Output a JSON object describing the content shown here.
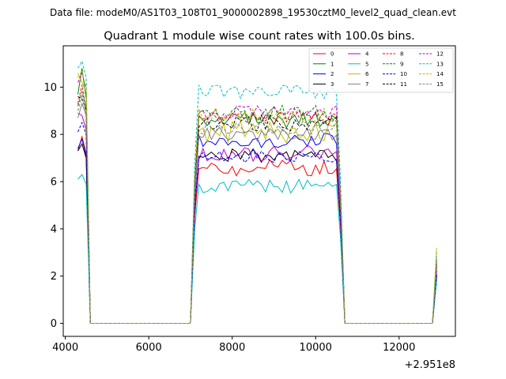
{
  "page": {
    "suptitle": "Data file: modeM0/AS1T03_108T01_9000002898_19530cztM0_level2_quad_clean.evt"
  },
  "chart_data": {
    "type": "line",
    "title": "Quadrant 1 module wise count rates with 100.0s bins.",
    "xlabel": "",
    "ylabel": "",
    "x_offset_label": "+2.951e8",
    "xlim": [
      3950,
      13350
    ],
    "ylim": [
      -0.55,
      11.75
    ],
    "xticks": [
      4000,
      6000,
      8000,
      10000,
      12000
    ],
    "xtick_labels": [
      "4000",
      "6000",
      "8000",
      "10000",
      "12000"
    ],
    "yticks": [
      0,
      2,
      4,
      6,
      8,
      10
    ],
    "ytick_labels": [
      "0",
      "2",
      "4",
      "6",
      "8",
      "10"
    ],
    "grid": false,
    "legend": {
      "placement": "top-right",
      "columns": 4
    },
    "segments": [
      {
        "start": 4300,
        "step": 100,
        "count": 4
      },
      {
        "start": 4700,
        "step": 100,
        "count": 24
      },
      {
        "start": 7100,
        "step": 100,
        "count": 36
      },
      {
        "start": 10700,
        "step": 100,
        "count": 22
      },
      {
        "start": 12900,
        "step": 100,
        "count": 1
      }
    ],
    "series": [
      {
        "name": "0",
        "color": "#ff0000",
        "dash": false,
        "pre": [
          7.3,
          7.9,
          7.2,
          0.0
        ],
        "level": 6.6,
        "var": 0.35,
        "end": 2.2
      },
      {
        "name": "1",
        "color": "#008000",
        "dash": false,
        "pre": [
          9.7,
          10.8,
          9.5,
          0.0
        ],
        "level": 8.6,
        "var": 0.35,
        "end": 2.6
      },
      {
        "name": "2",
        "color": "#0000ff",
        "dash": false,
        "pre": [
          7.4,
          7.8,
          7.1,
          0.0
        ],
        "level": 7.7,
        "var": 0.35,
        "end": 2.0
      },
      {
        "name": "3",
        "color": "#000000",
        "dash": false,
        "pre": [
          7.3,
          7.6,
          7.0,
          0.0
        ],
        "level": 7.1,
        "var": 0.3,
        "end": 2.0
      },
      {
        "name": "4",
        "color": "#bf00bf",
        "dash": false,
        "pre": [
          8.9,
          8.8,
          8.2,
          0.0
        ],
        "level": 7.2,
        "var": 0.35,
        "end": 2.1
      },
      {
        "name": "5",
        "color": "#00bfbf",
        "dash": false,
        "pre": [
          6.1,
          6.3,
          5.9,
          0.0
        ],
        "level": 5.8,
        "var": 0.3,
        "end": 1.8
      },
      {
        "name": "6",
        "color": "#bfbf00",
        "dash": false,
        "pre": [
          10.6,
          10.2,
          9.8,
          0.0
        ],
        "level": 8.1,
        "var": 0.45,
        "end": 3.2
      },
      {
        "name": "7",
        "color": "#808080",
        "dash": false,
        "pre": [
          8.7,
          9.3,
          8.8,
          0.0
        ],
        "level": 8.0,
        "var": 0.3,
        "end": 2.3
      },
      {
        "name": "8",
        "color": "#ff0000",
        "dash": true,
        "pre": [
          9.3,
          10.1,
          9.0,
          0.0
        ],
        "level": 8.7,
        "var": 0.3,
        "end": 2.5
      },
      {
        "name": "9",
        "color": "#008000",
        "dash": true,
        "pre": [
          9.2,
          9.8,
          9.1,
          0.0
        ],
        "level": 8.9,
        "var": 0.35,
        "end": 2.6
      },
      {
        "name": "10",
        "color": "#0000ff",
        "dash": true,
        "pre": [
          8.1,
          8.5,
          8.0,
          0.0
        ],
        "level": 7.1,
        "var": 0.3,
        "end": 2.1
      },
      {
        "name": "11",
        "color": "#000000",
        "dash": true,
        "pre": [
          9.6,
          9.5,
          9.0,
          0.0
        ],
        "level": 8.5,
        "var": 0.35,
        "end": 2.4
      },
      {
        "name": "12",
        "color": "#bf00bf",
        "dash": true,
        "pre": [
          10.2,
          10.6,
          10.0,
          0.0
        ],
        "level": 8.9,
        "var": 0.3,
        "end": 2.7
      },
      {
        "name": "13",
        "color": "#00bfbf",
        "dash": true,
        "pre": [
          10.8,
          11.1,
          10.4,
          0.0
        ],
        "level": 9.8,
        "var": 0.3,
        "end": 3.0
      },
      {
        "name": "14",
        "color": "#bfbf00",
        "dash": true,
        "pre": [
          10.4,
          10.7,
          9.9,
          0.0
        ],
        "level": 8.8,
        "var": 0.35,
        "end": 2.8
      },
      {
        "name": "15",
        "color": "#808080",
        "dash": true,
        "pre": [
          9.0,
          9.6,
          8.9,
          0.0
        ],
        "level": 8.3,
        "var": 0.3,
        "end": 2.4
      }
    ]
  }
}
